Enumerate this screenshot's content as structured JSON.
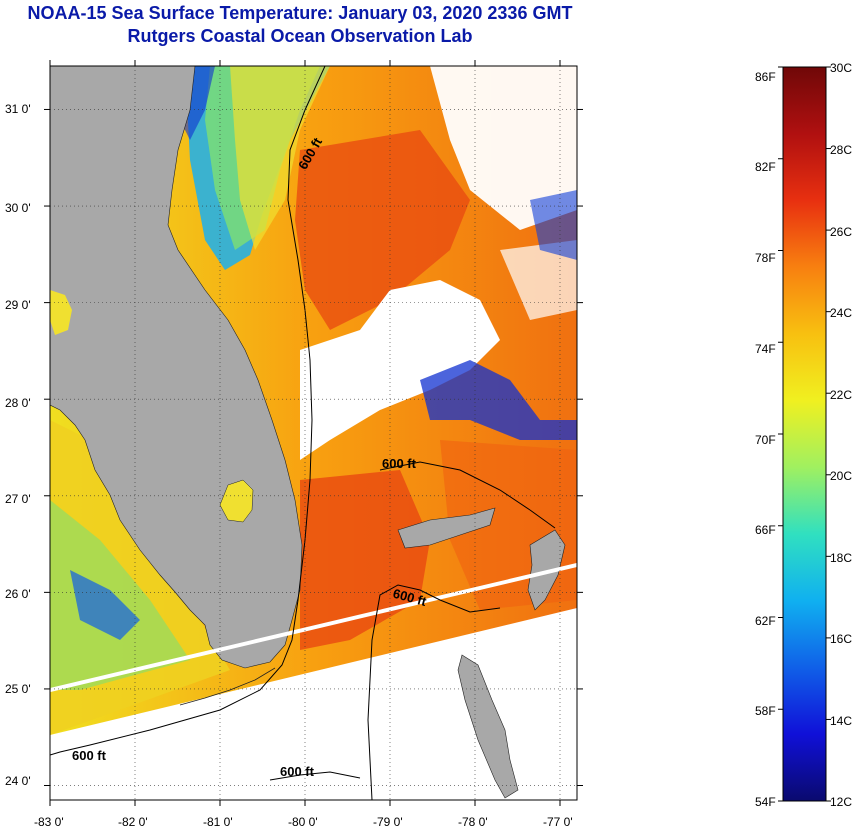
{
  "header": {
    "title": "NOAA-15 Sea Surface Temperature:  January 03, 2020 2336 GMT",
    "subtitle": "Rutgers Coastal Ocean Observation Lab"
  },
  "map": {
    "lon_ticks": [
      "-83 0'",
      "-82 0'",
      "-81 0'",
      "-80 0'",
      "-79 0'",
      "-78 0'",
      "-77 0'"
    ],
    "lat_ticks": [
      "31 0'",
      "30 0'",
      "29 0'",
      "28 0'",
      "27 0'",
      "26 0'",
      "25 0'",
      "24 0'"
    ],
    "lon_range": [
      -83,
      -76.8
    ],
    "lat_range": [
      23.85,
      31.45
    ],
    "isobath_labels": [
      "600 ft",
      "600 ft",
      "600 ft",
      "600 ft",
      "600 ft"
    ],
    "colors": {
      "land": "#a8a8a8",
      "cloud": "#ffffff"
    }
  },
  "colorbar": {
    "fahrenheit_labels": [
      "86F",
      "82F",
      "78F",
      "74F",
      "70F",
      "66F",
      "62F",
      "58F",
      "54F"
    ],
    "celsius_labels": [
      "30C",
      "28C",
      "26C",
      "24C",
      "22C",
      "20C",
      "18C",
      "16C",
      "14C",
      "12C"
    ],
    "range_c": [
      12,
      30
    ],
    "colormap": [
      "#0a0a6e",
      "#1010d8",
      "#1060e8",
      "#10b0f0",
      "#30e0c0",
      "#a0f060",
      "#f0f020",
      "#f8c010",
      "#f88010",
      "#e83010",
      "#b01010",
      "#700808"
    ]
  }
}
